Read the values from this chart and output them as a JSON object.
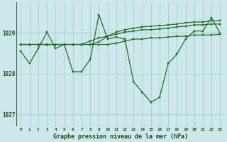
{
  "bg_color": "#cce8ea",
  "grid_color": "#aacccc",
  "line_color": "#1a6620",
  "title": "Graphe pression niveau de la mer (hPa)",
  "ylim": [
    1026.7,
    1029.75
  ],
  "yticks": [
    1027,
    1028,
    1029
  ],
  "xlim": [
    -0.5,
    23.5
  ],
  "xticks": [
    0,
    1,
    2,
    3,
    4,
    5,
    6,
    7,
    8,
    9,
    10,
    11,
    12,
    13,
    14,
    15,
    16,
    17,
    18,
    19,
    20,
    21,
    22,
    23
  ],
  "series1": [
    1028.55,
    1028.25,
    1028.62,
    1029.02,
    1028.62,
    1028.72,
    1028.05,
    1028.05,
    1028.35,
    1029.45,
    1028.85,
    1028.9,
    1028.85,
    1027.8,
    1027.55,
    1027.3,
    1027.42,
    1028.25,
    1028.48,
    1028.85,
    1029.05,
    1029.05,
    1029.38,
    1028.98
  ],
  "series2": [
    1028.72,
    1028.72,
    1028.72,
    1028.72,
    1028.72,
    1028.72,
    1028.72,
    1028.72,
    1028.8,
    1028.88,
    1028.92,
    1028.97,
    1029.02,
    1029.05,
    1029.08,
    1029.08,
    1029.1,
    1029.12,
    1029.15,
    1029.17,
    1029.2,
    1029.2,
    1029.22,
    1029.22
  ],
  "series3": [
    1028.72,
    1028.72,
    1028.72,
    1028.72,
    1028.72,
    1028.72,
    1028.72,
    1028.72,
    1028.72,
    1028.78,
    1028.92,
    1029.02,
    1029.08,
    1029.12,
    1029.15,
    1029.17,
    1029.18,
    1029.2,
    1029.22,
    1029.25,
    1029.27,
    1029.27,
    1029.3,
    1029.3
  ],
  "series4": [
    1028.72,
    1028.72,
    1028.72,
    1028.72,
    1028.72,
    1028.72,
    1028.72,
    1028.72,
    1028.72,
    1028.72,
    1028.72,
    1028.75,
    1028.8,
    1028.85,
    1028.85,
    1028.88,
    1028.88,
    1028.9,
    1028.92,
    1028.92,
    1028.95,
    1028.95,
    1028.95,
    1028.97
  ]
}
